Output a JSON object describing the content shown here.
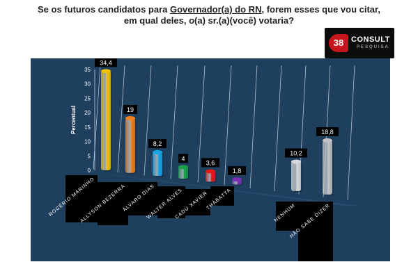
{
  "title": {
    "line1_a": "Se os futuros candidatos para ",
    "line1_b": "Governador(a) do RN",
    "line1_c": ", forem esses que vou citar,",
    "line2": "em qual deles, o(a) sr.(a)(você) votaria?"
  },
  "logo": {
    "badge": "38",
    "word": "CONSULT",
    "sub": "PESQUISA"
  },
  "colors": {
    "background": "#1f3f5e",
    "label_box": "#000000"
  },
  "chart_data": {
    "type": "bar",
    "title": "",
    "xlabel": "",
    "ylabel": "Percentual",
    "ylim": [
      0,
      35
    ],
    "yticks": [
      0,
      5,
      10,
      15,
      20,
      25,
      30,
      35
    ],
    "grid": true,
    "categories": [
      "ROGÉRIO MARINHO",
      "ALLYSON BEZERRA",
      "ÁLVARO DIAS",
      "WALTER ALVES",
      "CADÚ XAVIER",
      "THÁBATTA",
      "NENHUM",
      "NÃO SABE DIZER"
    ],
    "values": [
      34.4,
      19,
      8.2,
      4,
      3.6,
      1.8,
      10.2,
      18.8
    ],
    "value_labels": [
      "34,4",
      "19",
      "8,2",
      "4",
      "3,6",
      "1,8",
      "10,2",
      "18,8"
    ],
    "bar_colors": [
      "#f3c300",
      "#f07f1e",
      "#17a6e8",
      "#18a14a",
      "#e81a1a",
      "#7b2fb5",
      "#d8d8d8",
      "#c4c4c4"
    ]
  }
}
